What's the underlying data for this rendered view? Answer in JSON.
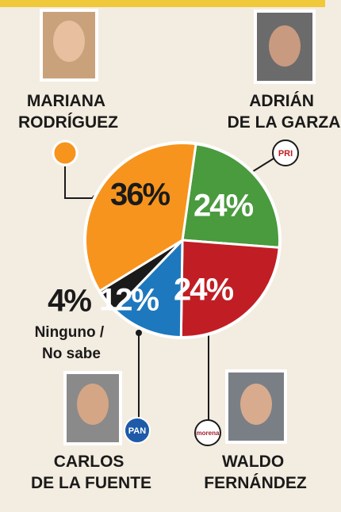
{
  "chart_data": {
    "type": "pie",
    "categories": [
      "ADRIÁN DE LA GARZA",
      "WALDO FERNÁNDEZ",
      "CARLOS DE LA FUENTE",
      "Ninguno / No sabe",
      "MARIANA RODRÍGUEZ"
    ],
    "values": [
      24,
      24,
      12,
      4,
      36
    ],
    "value_labels": [
      "24%",
      "24%",
      "12%",
      "4%",
      "36%"
    ],
    "colors": [
      "#4a9a3e",
      "#c01e24",
      "#1e78bd",
      "#1a1a1a",
      "#f7941d"
    ],
    "parties": [
      "PRI",
      "morena",
      "PAN",
      null,
      null
    ]
  }
}
